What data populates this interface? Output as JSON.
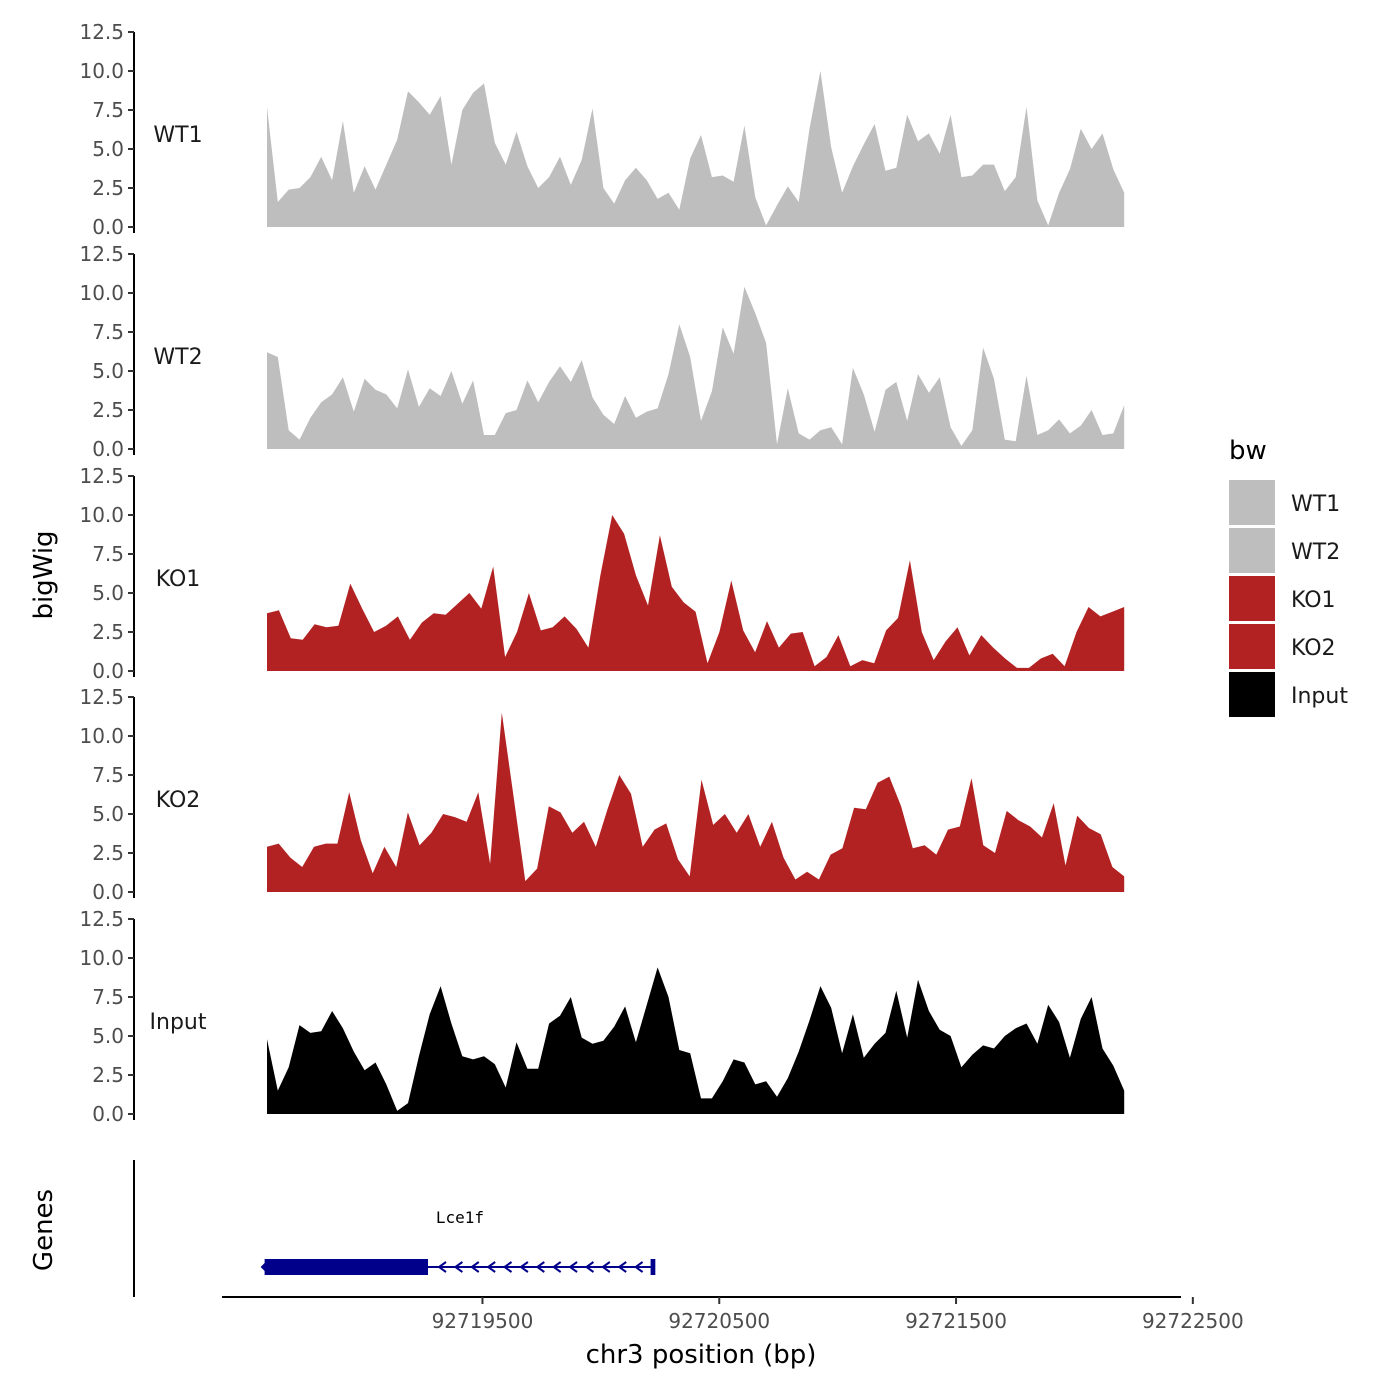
{
  "chart_data": {
    "type": "area",
    "xlabel": "chr3 position (bp)",
    "ylabel": "bigWig",
    "genes_label": "Genes",
    "xlim": [
      92718400,
      92722450
    ],
    "x_ticks": [
      92719500,
      92720500,
      92721500,
      92722500
    ],
    "x_tick_labels": [
      "92719500",
      "92720500",
      "92721500",
      "92722500"
    ],
    "ylim": [
      0,
      12.5
    ],
    "y_ticks": [
      0,
      2.5,
      5,
      7.5,
      10,
      12.5
    ],
    "y_tick_labels": [
      "0.0",
      "2.5",
      "5.0",
      "7.5",
      "10.0",
      "12.5"
    ],
    "colors": {
      "WT1": "#bebebe",
      "WT2": "#bebebe",
      "KO1": "#b22222",
      "KO2": "#b22222",
      "Input": "#000000",
      "gene": "#00008b"
    },
    "legend": {
      "title": "bw",
      "items": [
        {
          "label": "WT1",
          "color": "#bebebe"
        },
        {
          "label": "WT2",
          "color": "#bebebe"
        },
        {
          "label": "KO1",
          "color": "#b22222"
        },
        {
          "label": "KO2",
          "color": "#b22222"
        },
        {
          "label": "Input",
          "color": "#000000"
        }
      ]
    },
    "series": [
      {
        "name": "WT1",
        "x_start": 92718590,
        "x_end": 92722210,
        "values": [
          7.7,
          1.6,
          2.4,
          2.5,
          3.2,
          4.5,
          3.0,
          6.8,
          2.2,
          3.9,
          2.4,
          4.0,
          5.6,
          8.7,
          8.0,
          7.2,
          8.4,
          4.0,
          7.5,
          8.6,
          9.2,
          5.4,
          4.0,
          6.1,
          3.9,
          2.5,
          3.2,
          4.5,
          2.7,
          4.3,
          7.6,
          2.5,
          1.5,
          3.0,
          3.8,
          3.0,
          1.8,
          2.2,
          1.1,
          4.4,
          5.9,
          3.2,
          3.3,
          2.9,
          6.5,
          1.9,
          0.1,
          1.4,
          2.6,
          1.6,
          6.3,
          10.0,
          5.1,
          2.2,
          3.9,
          5.3,
          6.6,
          3.6,
          3.8,
          7.2,
          5.5,
          6.0,
          4.7,
          7.2,
          3.2,
          3.3,
          4.0,
          4.0,
          2.3,
          3.2,
          7.7,
          1.7,
          0.1,
          2.2,
          3.7,
          6.3,
          5.0,
          6.0,
          3.7,
          2.2
        ]
      },
      {
        "name": "WT2",
        "x_start": 92718590,
        "x_end": 92722210,
        "values": [
          6.2,
          5.9,
          1.2,
          0.6,
          2.0,
          3.0,
          3.5,
          4.6,
          2.4,
          4.5,
          3.8,
          3.5,
          2.6,
          5.1,
          2.7,
          3.9,
          3.4,
          5.0,
          2.9,
          4.4,
          0.9,
          0.9,
          2.3,
          2.5,
          4.4,
          3.0,
          4.3,
          5.3,
          4.3,
          5.7,
          3.3,
          2.2,
          1.6,
          3.4,
          2.0,
          2.4,
          2.6,
          4.8,
          8.0,
          5.9,
          1.8,
          3.7,
          7.8,
          6.1,
          10.4,
          8.7,
          6.8,
          0.3,
          3.9,
          1.0,
          0.6,
          1.2,
          1.4,
          0.3,
          5.2,
          3.5,
          1.1,
          3.8,
          4.3,
          1.8,
          4.8,
          3.6,
          4.6,
          1.4,
          0.2,
          1.2,
          6.5,
          4.5,
          0.6,
          0.5,
          4.7,
          0.9,
          1.2,
          1.9,
          1.0,
          1.5,
          2.5,
          0.9,
          1.0,
          2.8
        ]
      },
      {
        "name": "KO1",
        "x_start": 92718590,
        "x_end": 92722210,
        "values": [
          3.7,
          3.9,
          2.1,
          2.0,
          3.0,
          2.8,
          2.9,
          5.6,
          4.0,
          2.5,
          2.9,
          3.5,
          2.0,
          3.1,
          3.7,
          3.6,
          4.3,
          5.0,
          4.0,
          6.7,
          0.9,
          2.5,
          5.0,
          2.6,
          2.8,
          3.5,
          2.7,
          1.5,
          6.1,
          10.0,
          8.8,
          6.1,
          4.2,
          8.7,
          5.4,
          4.4,
          3.8,
          0.5,
          2.5,
          5.8,
          2.6,
          1.2,
          3.2,
          1.5,
          2.4,
          2.5,
          0.3,
          0.9,
          2.3,
          0.3,
          0.7,
          0.5,
          2.6,
          3.4,
          7.1,
          2.5,
          0.7,
          1.9,
          2.8,
          1.0,
          2.3,
          1.5,
          0.8,
          0.2,
          0.2,
          0.8,
          1.1,
          0.3,
          2.5,
          4.1,
          3.5,
          3.8,
          4.1
        ]
      },
      {
        "name": "KO2",
        "x_start": 92718590,
        "x_end": 92722210,
        "values": [
          2.9,
          3.1,
          2.2,
          1.6,
          2.9,
          3.1,
          3.1,
          6.4,
          3.3,
          1.2,
          2.9,
          1.6,
          5.1,
          3.0,
          3.8,
          5.0,
          4.8,
          4.5,
          6.4,
          1.8,
          11.5,
          6.1,
          0.7,
          1.5,
          5.5,
          5.1,
          3.8,
          4.5,
          2.9,
          5.3,
          7.5,
          6.3,
          2.9,
          4.0,
          4.4,
          2.1,
          1.0,
          7.2,
          4.3,
          5.0,
          3.8,
          5.0,
          2.9,
          4.5,
          2.2,
          0.8,
          1.3,
          0.8,
          2.4,
          2.8,
          5.4,
          5.3,
          7.0,
          7.4,
          5.5,
          2.8,
          3.0,
          2.4,
          4.0,
          4.2,
          7.3,
          3.0,
          2.5,
          5.2,
          4.6,
          4.2,
          3.5,
          5.7,
          1.7,
          4.9,
          4.1,
          3.7,
          1.6,
          1.0
        ]
      },
      {
        "name": "Input",
        "x_start": 92718590,
        "x_end": 92722210,
        "values": [
          4.8,
          1.5,
          3.0,
          5.7,
          5.2,
          5.3,
          6.6,
          5.5,
          4.0,
          2.8,
          3.3,
          1.9,
          0.2,
          0.7,
          3.7,
          6.4,
          8.2,
          5.8,
          3.7,
          3.5,
          3.7,
          3.2,
          1.7,
          4.6,
          2.9,
          2.9,
          5.8,
          6.3,
          7.5,
          4.9,
          4.5,
          4.7,
          5.6,
          6.9,
          4.6,
          7.0,
          9.4,
          7.5,
          4.1,
          3.9,
          1.0,
          1.0,
          2.1,
          3.5,
          3.3,
          1.9,
          2.1,
          1.1,
          2.3,
          4.0,
          6.0,
          8.2,
          6.8,
          3.9,
          6.4,
          3.6,
          4.5,
          5.2,
          7.9,
          4.9,
          8.6,
          6.6,
          5.4,
          5.0,
          3.0,
          3.8,
          4.4,
          4.2,
          5.0,
          5.5,
          5.8,
          4.5,
          7.0,
          5.9,
          3.6,
          6.1,
          7.5,
          4.2,
          3.1,
          1.5
        ]
      }
    ],
    "gene": {
      "name": "Lce1f",
      "strand": "-",
      "exon1": [
        92718580,
        92719270
      ],
      "intron": [
        92719270,
        92720210
      ],
      "exon2": [
        92720210,
        92720230
      ]
    }
  }
}
